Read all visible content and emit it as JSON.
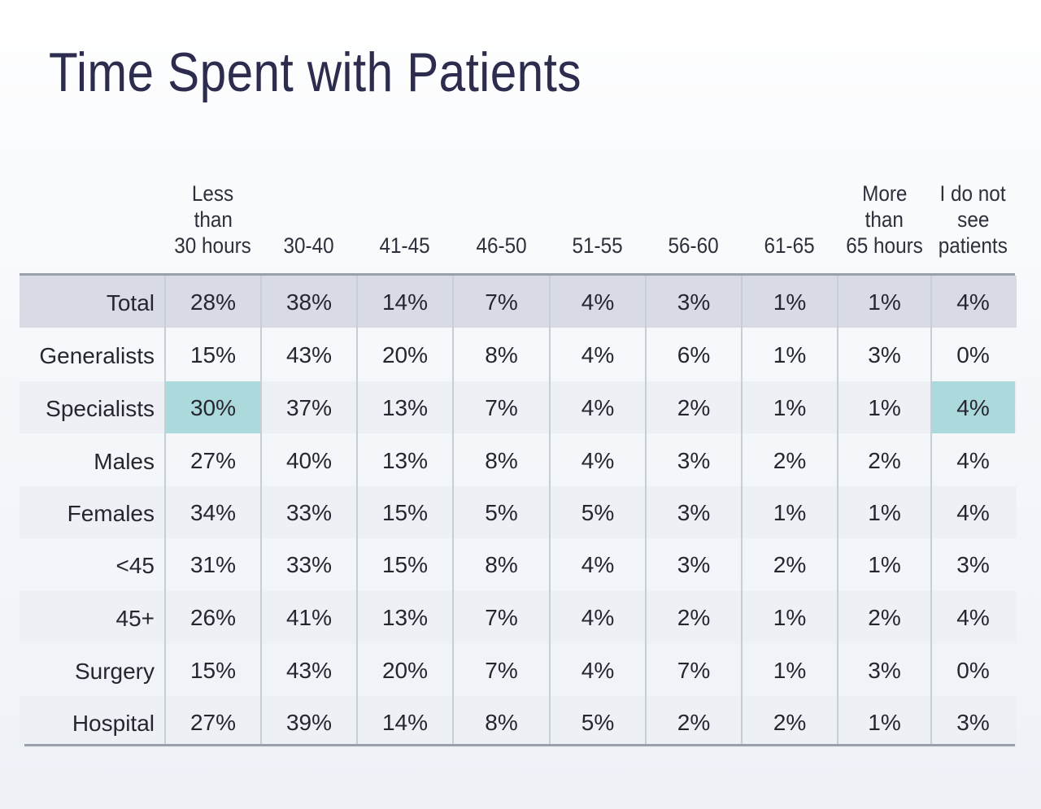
{
  "title": "Time Spent with Patients",
  "chart_data": {
    "type": "table",
    "title": "Time Spent with Patients",
    "columns": [
      [
        "Less",
        "than",
        "30 hours"
      ],
      [
        "30-40"
      ],
      [
        "41-45"
      ],
      [
        "46-50"
      ],
      [
        "51-55"
      ],
      [
        "56-60"
      ],
      [
        "61-65"
      ],
      [
        "More",
        "than",
        "65 hours"
      ],
      [
        "I do not",
        "see",
        "patients"
      ]
    ],
    "rows": [
      {
        "label": "Total",
        "values": [
          "28%",
          "38%",
          "14%",
          "7%",
          "4%",
          "3%",
          "1%",
          "1%",
          "4%"
        ]
      },
      {
        "label": "Generalists",
        "values": [
          "15%",
          "43%",
          "20%",
          "8%",
          "4%",
          "6%",
          "1%",
          "3%",
          "0%"
        ]
      },
      {
        "label": "Specialists",
        "values": [
          "30%",
          "37%",
          "13%",
          "7%",
          "4%",
          "2%",
          "1%",
          "1%",
          "4%"
        ]
      },
      {
        "label": "Males",
        "values": [
          "27%",
          "40%",
          "13%",
          "8%",
          "4%",
          "3%",
          "2%",
          "2%",
          "4%"
        ]
      },
      {
        "label": "Females",
        "values": [
          "34%",
          "33%",
          "15%",
          "5%",
          "5%",
          "3%",
          "1%",
          "1%",
          "4%"
        ]
      },
      {
        "label": "<45",
        "values": [
          "31%",
          "33%",
          "15%",
          "8%",
          "4%",
          "3%",
          "2%",
          "1%",
          "3%"
        ]
      },
      {
        "label": "45+",
        "values": [
          "26%",
          "41%",
          "13%",
          "7%",
          "4%",
          "2%",
          "1%",
          "2%",
          "4%"
        ]
      },
      {
        "label": "Surgery",
        "values": [
          "15%",
          "43%",
          "20%",
          "7%",
          "4%",
          "7%",
          "1%",
          "3%",
          "0%"
        ]
      },
      {
        "label": "Hospital",
        "values": [
          "27%",
          "39%",
          "14%",
          "8%",
          "5%",
          "2%",
          "2%",
          "1%",
          "3%"
        ]
      }
    ],
    "highlighted": [
      {
        "row": "Specialists",
        "column": 0
      },
      {
        "row": "Specialists",
        "column": 8
      }
    ]
  },
  "colors": {
    "title": "#2c2c4e",
    "total_row": "#d8dbe3",
    "shaded_row": "#edf0f5",
    "highlight": "#acd9db",
    "rule": "#9aa0aa"
  }
}
